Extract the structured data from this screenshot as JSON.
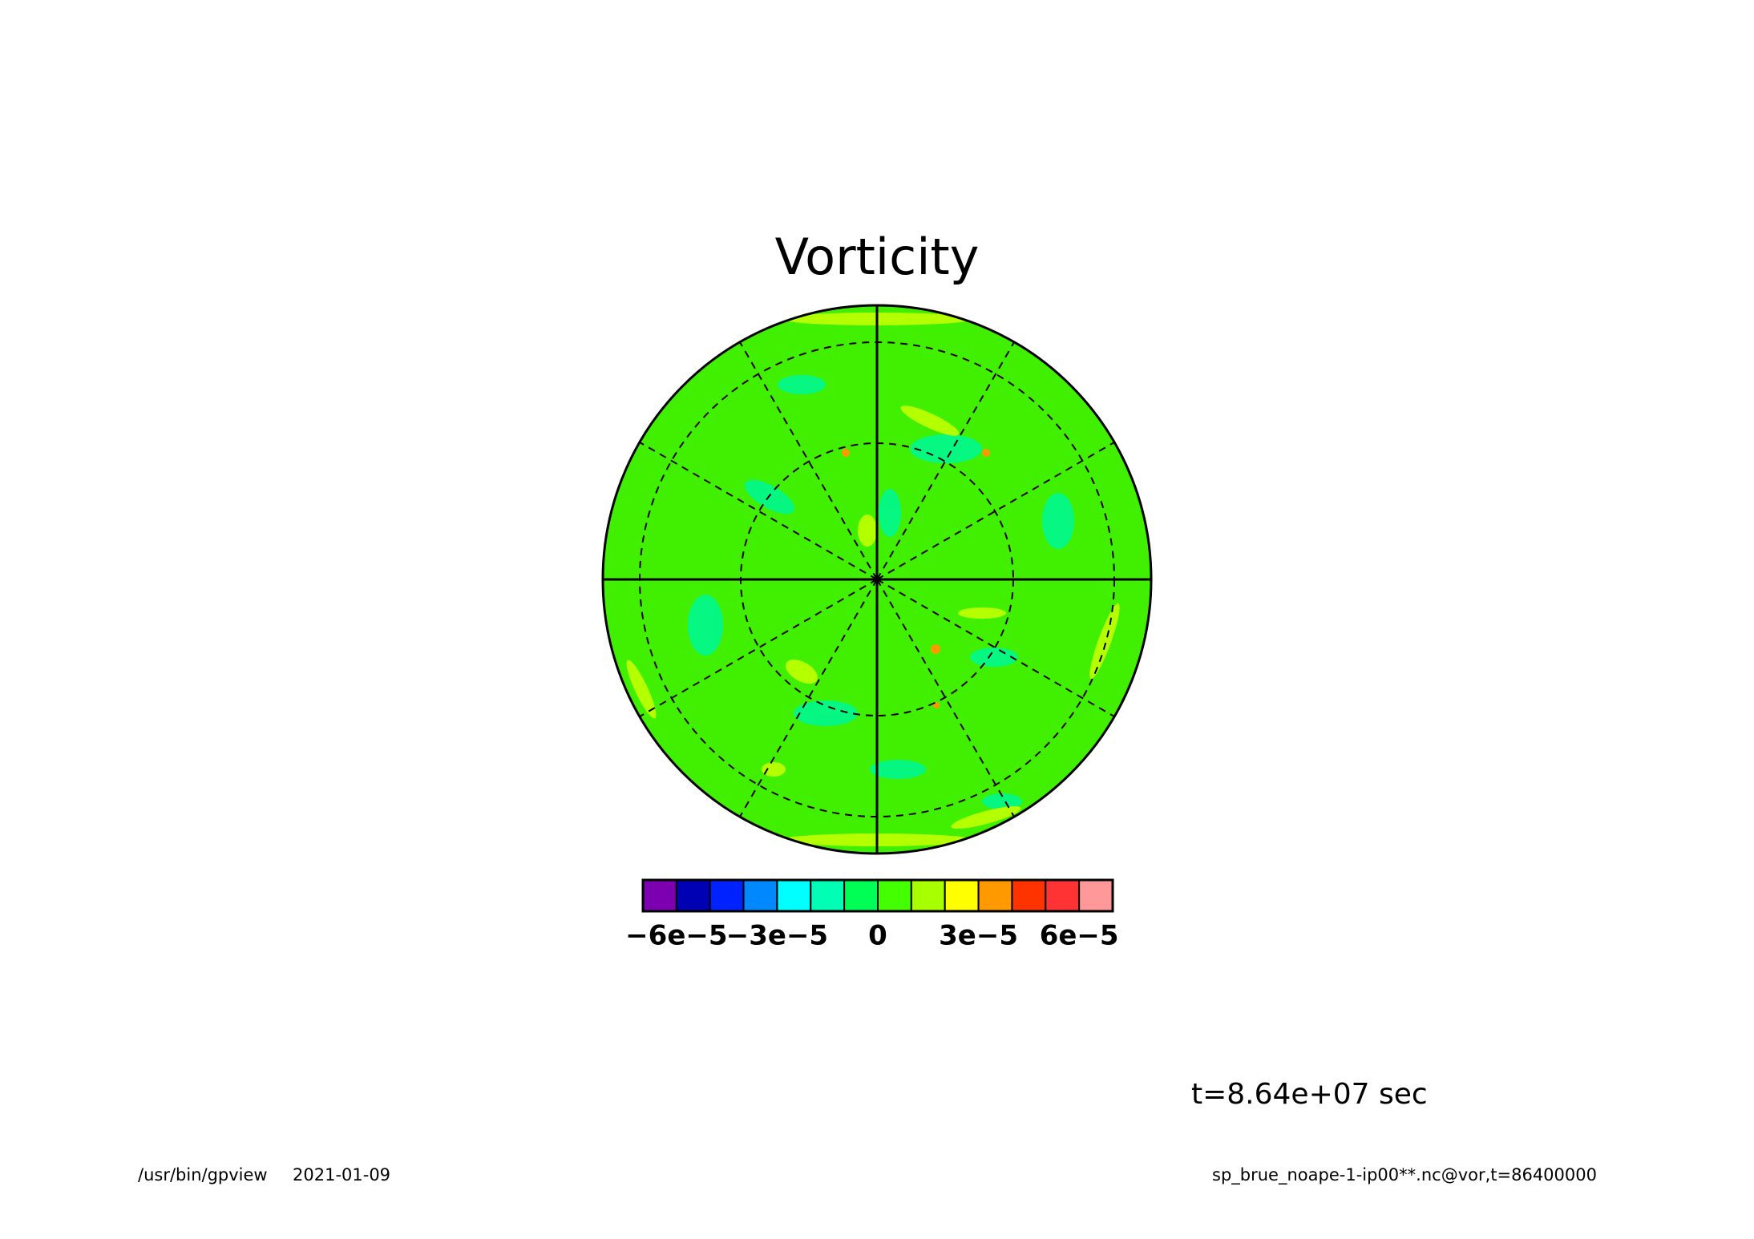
{
  "chart_data": {
    "type": "contour-map",
    "title": "Vorticity",
    "colorbar": {
      "levels": [
        -7e-05,
        -6e-05,
        -5e-05,
        -4e-05,
        -3e-05,
        -2e-05,
        -1e-05,
        0,
        1e-05,
        2e-05,
        3e-05,
        4e-05,
        5e-05,
        6e-05,
        7e-05
      ],
      "colors": [
        "#7d00b0",
        "#0000b4",
        "#0022ff",
        "#0088ff",
        "#00ffff",
        "#00ffb4",
        "#00ff55",
        "#44ff00",
        "#a8ff00",
        "#ffff00",
        "#ff9900",
        "#ff3300",
        "#ff3333",
        "#ff9999"
      ],
      "xlim": [
        -7e-05,
        7e-05
      ],
      "xticks": [
        {
          "value": -6e-05,
          "label": "−6e−5"
        },
        {
          "value": -3e-05,
          "label": "−3e−5"
        },
        0,
        {
          "value": 3e-05,
          "label": "3e−5"
        },
        {
          "value": 6e-05,
          "label": "6e−5"
        }
      ]
    },
    "annotations": {
      "time": "t=8.64e+07 sec",
      "program": "/usr/bin/gpview",
      "date": "2021-01-09",
      "source": "sp_brue_noape-1-ip00**.nc@vor,t=86400000"
    }
  }
}
